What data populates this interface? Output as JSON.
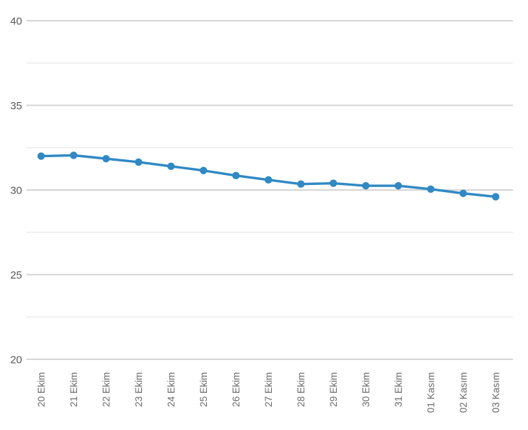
{
  "chart_data": {
    "type": "line",
    "title": "",
    "xlabel": "",
    "ylabel": "",
    "categories": [
      "20 Ekim",
      "21 Ekim",
      "22 Ekim",
      "23 Ekim",
      "24 Ekim",
      "25 Ekim",
      "26 Ekim",
      "27 Ekim",
      "28 Ekim",
      "29 Ekim",
      "30 Ekim",
      "31 Ekim",
      "01 Kasım",
      "02 Kasım",
      "03 Kasım"
    ],
    "values": [
      32.0,
      32.05,
      31.85,
      31.65,
      31.4,
      31.15,
      30.85,
      30.6,
      30.35,
      30.4,
      30.25,
      30.25,
      30.05,
      29.8,
      29.6
    ],
    "ylim": [
      20,
      40
    ],
    "y_major_ticks": [
      20,
      25,
      30,
      35,
      40
    ],
    "y_minor_ticks": [
      22.5,
      27.5,
      32.5,
      37.5
    ],
    "grid": true,
    "legend": false,
    "colors": {
      "background": "#ffffff",
      "line": "#3089c4",
      "marker": "#3089c4",
      "grid_major": "#d5d5d5",
      "grid_minor": "#ededed",
      "y_label_text": "#595959",
      "x_label_text": "#6b6b6b"
    }
  }
}
